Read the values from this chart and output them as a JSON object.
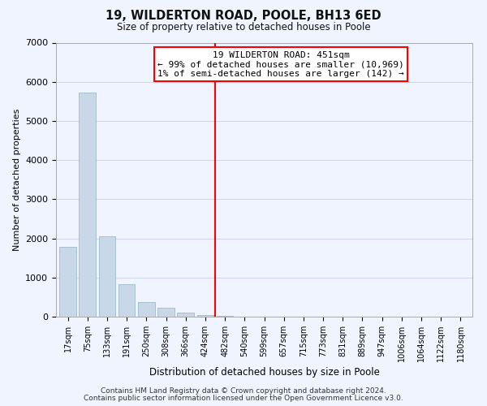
{
  "title": "19, WILDERTON ROAD, POOLE, BH13 6ED",
  "subtitle": "Size of property relative to detached houses in Poole",
  "xlabel": "Distribution of detached houses by size in Poole",
  "ylabel": "Number of detached properties",
  "bar_labels": [
    "17sqm",
    "75sqm",
    "133sqm",
    "191sqm",
    "250sqm",
    "308sqm",
    "366sqm",
    "424sqm",
    "482sqm",
    "540sqm",
    "599sqm",
    "657sqm",
    "715sqm",
    "773sqm",
    "831sqm",
    "889sqm",
    "947sqm",
    "1006sqm",
    "1064sqm",
    "1122sqm",
    "1180sqm"
  ],
  "bar_heights": [
    1780,
    5730,
    2050,
    830,
    370,
    230,
    110,
    50,
    30,
    10,
    5,
    2,
    2,
    0,
    0,
    0,
    0,
    0,
    0,
    0,
    0
  ],
  "bar_color": "#c8d8e8",
  "bar_edge_color": "#a0b8cc",
  "vline_x": 7.5,
  "vline_color": "red",
  "annotation_title": "19 WILDERTON ROAD: 451sqm",
  "annotation_line1": "← 99% of detached houses are smaller (10,969)",
  "annotation_line2": "1% of semi-detached houses are larger (142) →",
  "annotation_box_color": "white",
  "annotation_box_edge_color": "red",
  "ylim": [
    0,
    7000
  ],
  "yticks": [
    0,
    1000,
    2000,
    3000,
    4000,
    5000,
    6000,
    7000
  ],
  "footnote1": "Contains HM Land Registry data © Crown copyright and database right 2024.",
  "footnote2": "Contains public sector information licensed under the Open Government Licence v3.0.",
  "background_color": "#f0f4ff",
  "grid_color": "#d0d8ee"
}
